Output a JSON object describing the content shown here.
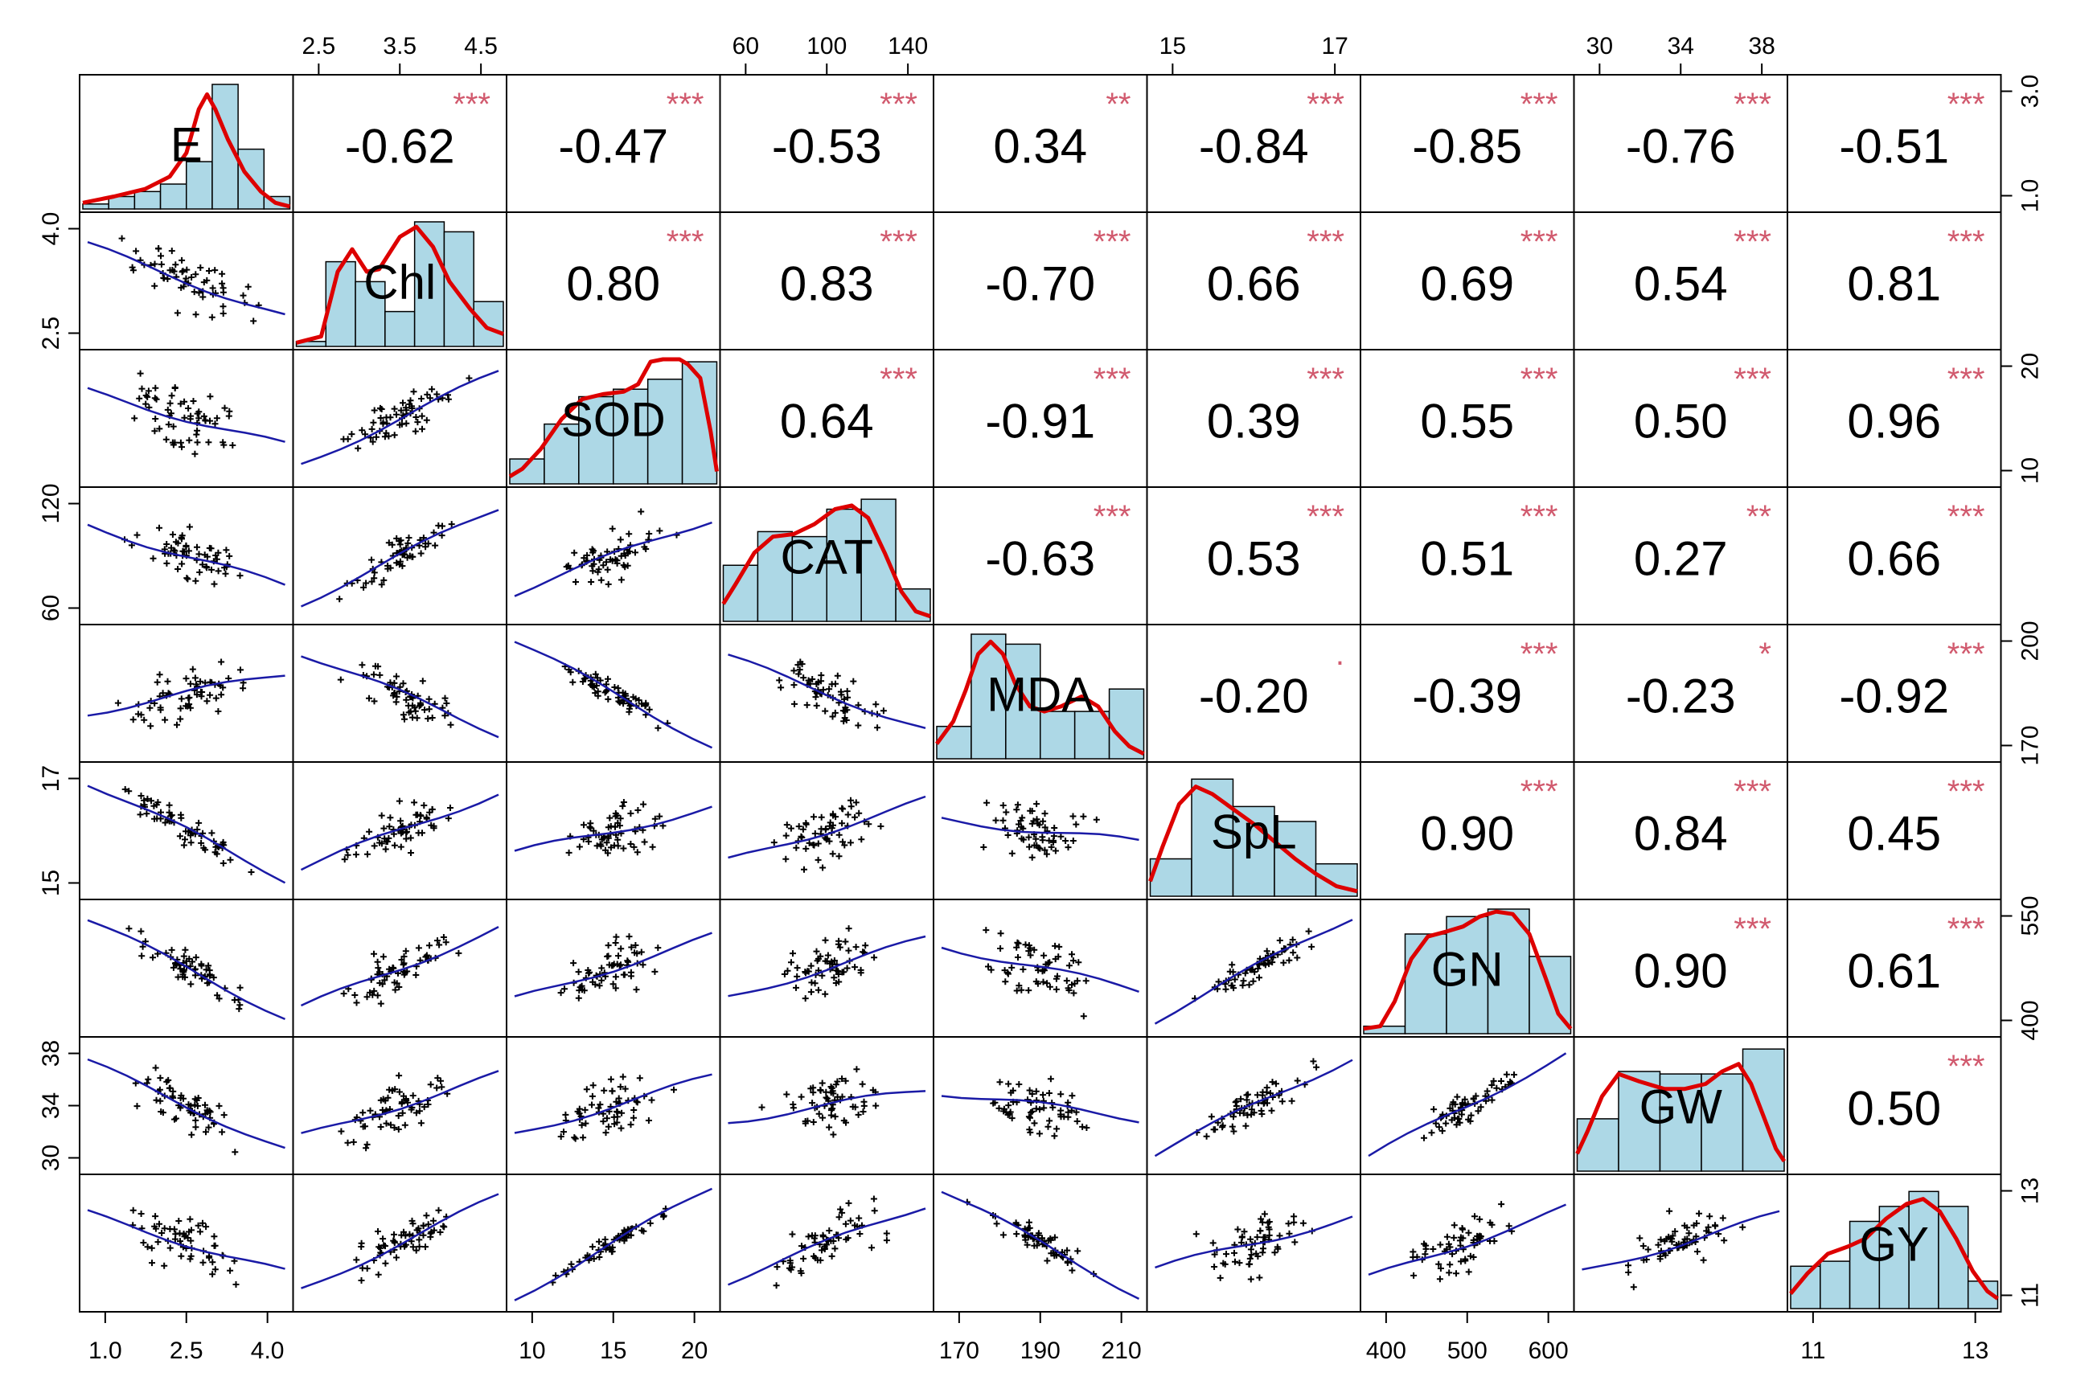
{
  "chart_data": {
    "type": "scatter-matrix",
    "variables": [
      "E",
      "Chl",
      "SOD",
      "CAT",
      "MDA",
      "SpL",
      "GN",
      "GW",
      "GY"
    ],
    "correlations": [
      {
        "row": 0,
        "col": 1,
        "r": "-0.62",
        "stars": "***"
      },
      {
        "row": 0,
        "col": 2,
        "r": "-0.47",
        "stars": "***"
      },
      {
        "row": 0,
        "col": 3,
        "r": "-0.53",
        "stars": "***"
      },
      {
        "row": 0,
        "col": 4,
        "r": "0.34",
        "stars": "**"
      },
      {
        "row": 0,
        "col": 5,
        "r": "-0.84",
        "stars": "***"
      },
      {
        "row": 0,
        "col": 6,
        "r": "-0.85",
        "stars": "***"
      },
      {
        "row": 0,
        "col": 7,
        "r": "-0.76",
        "stars": "***"
      },
      {
        "row": 0,
        "col": 8,
        "r": "-0.51",
        "stars": "***"
      },
      {
        "row": 1,
        "col": 2,
        "r": "0.80",
        "stars": "***"
      },
      {
        "row": 1,
        "col": 3,
        "r": "0.83",
        "stars": "***"
      },
      {
        "row": 1,
        "col": 4,
        "r": "-0.70",
        "stars": "***"
      },
      {
        "row": 1,
        "col": 5,
        "r": "0.66",
        "stars": "***"
      },
      {
        "row": 1,
        "col": 6,
        "r": "0.69",
        "stars": "***"
      },
      {
        "row": 1,
        "col": 7,
        "r": "0.54",
        "stars": "***"
      },
      {
        "row": 1,
        "col": 8,
        "r": "0.81",
        "stars": "***"
      },
      {
        "row": 2,
        "col": 3,
        "r": "0.64",
        "stars": "***"
      },
      {
        "row": 2,
        "col": 4,
        "r": "-0.91",
        "stars": "***"
      },
      {
        "row": 2,
        "col": 5,
        "r": "0.39",
        "stars": "***"
      },
      {
        "row": 2,
        "col": 6,
        "r": "0.55",
        "stars": "***"
      },
      {
        "row": 2,
        "col": 7,
        "r": "0.50",
        "stars": "***"
      },
      {
        "row": 2,
        "col": 8,
        "r": "0.96",
        "stars": "***"
      },
      {
        "row": 3,
        "col": 4,
        "r": "-0.63",
        "stars": "***"
      },
      {
        "row": 3,
        "col": 5,
        "r": "0.53",
        "stars": "***"
      },
      {
        "row": 3,
        "col": 6,
        "r": "0.51",
        "stars": "***"
      },
      {
        "row": 3,
        "col": 7,
        "r": "0.27",
        "stars": "**"
      },
      {
        "row": 3,
        "col": 8,
        "r": "0.66",
        "stars": "***"
      },
      {
        "row": 4,
        "col": 5,
        "r": "-0.20",
        "stars": "."
      },
      {
        "row": 4,
        "col": 6,
        "r": "-0.39",
        "stars": "***"
      },
      {
        "row": 4,
        "col": 7,
        "r": "-0.23",
        "stars": "*"
      },
      {
        "row": 4,
        "col": 8,
        "r": "-0.92",
        "stars": "***"
      },
      {
        "row": 5,
        "col": 6,
        "r": "0.90",
        "stars": "***"
      },
      {
        "row": 5,
        "col": 7,
        "r": "0.84",
        "stars": "***"
      },
      {
        "row": 5,
        "col": 8,
        "r": "0.45",
        "stars": "***"
      },
      {
        "row": 6,
        "col": 7,
        "r": "0.90",
        "stars": "***"
      },
      {
        "row": 6,
        "col": 8,
        "r": "0.61",
        "stars": "***"
      },
      {
        "row": 7,
        "col": 8,
        "r": "0.50",
        "stars": "***"
      }
    ],
    "histograms": [
      [
        0.04,
        0.1,
        0.14,
        0.2,
        0.38,
        1.0,
        0.48,
        0.1
      ],
      [
        0.04,
        0.68,
        0.52,
        0.28,
        1.0,
        0.92,
        0.36
      ],
      [
        0.2,
        0.48,
        0.7,
        0.76,
        0.84,
        0.98
      ],
      [
        0.45,
        0.72,
        0.68,
        0.9,
        0.98,
        0.26
      ],
      [
        0.26,
        1.0,
        0.92,
        0.38,
        0.38,
        0.56
      ],
      [
        0.3,
        0.94,
        0.72,
        0.6,
        0.26
      ],
      [
        0.06,
        0.8,
        0.94,
        1.0,
        0.62
      ],
      [
        0.42,
        0.8,
        0.78,
        0.78,
        0.98
      ],
      [
        0.34,
        0.38,
        0.7,
        0.82,
        0.94,
        0.82,
        0.22
      ]
    ],
    "density_curves": [
      [
        [
          0.0,
          0.05
        ],
        [
          0.15,
          0.1
        ],
        [
          0.3,
          0.16
        ],
        [
          0.42,
          0.26
        ],
        [
          0.5,
          0.45
        ],
        [
          0.56,
          0.8
        ],
        [
          0.6,
          0.92
        ],
        [
          0.64,
          0.8
        ],
        [
          0.7,
          0.56
        ],
        [
          0.78,
          0.3
        ],
        [
          0.86,
          0.14
        ],
        [
          0.93,
          0.05
        ],
        [
          1.0,
          0.02
        ]
      ],
      [
        [
          0.0,
          0.03
        ],
        [
          0.12,
          0.08
        ],
        [
          0.2,
          0.6
        ],
        [
          0.27,
          0.78
        ],
        [
          0.34,
          0.6
        ],
        [
          0.4,
          0.62
        ],
        [
          0.5,
          0.88
        ],
        [
          0.58,
          0.96
        ],
        [
          0.66,
          0.8
        ],
        [
          0.74,
          0.52
        ],
        [
          0.84,
          0.3
        ],
        [
          0.92,
          0.15
        ],
        [
          1.0,
          0.1
        ]
      ],
      [
        [
          0.0,
          0.06
        ],
        [
          0.06,
          0.12
        ],
        [
          0.15,
          0.28
        ],
        [
          0.25,
          0.52
        ],
        [
          0.35,
          0.68
        ],
        [
          0.45,
          0.72
        ],
        [
          0.55,
          0.74
        ],
        [
          0.62,
          0.8
        ],
        [
          0.68,
          0.98
        ],
        [
          0.74,
          1.0
        ],
        [
          0.82,
          1.0
        ],
        [
          0.86,
          0.96
        ],
        [
          0.92,
          0.85
        ],
        [
          0.97,
          0.42
        ],
        [
          1.0,
          0.1
        ]
      ],
      [
        [
          0.0,
          0.14
        ],
        [
          0.06,
          0.3
        ],
        [
          0.15,
          0.55
        ],
        [
          0.24,
          0.68
        ],
        [
          0.34,
          0.7
        ],
        [
          0.44,
          0.78
        ],
        [
          0.54,
          0.9
        ],
        [
          0.62,
          0.93
        ],
        [
          0.7,
          0.83
        ],
        [
          0.78,
          0.55
        ],
        [
          0.86,
          0.24
        ],
        [
          0.93,
          0.08
        ],
        [
          1.0,
          0.04
        ]
      ],
      [
        [
          0.0,
          0.12
        ],
        [
          0.08,
          0.3
        ],
        [
          0.14,
          0.55
        ],
        [
          0.2,
          0.84
        ],
        [
          0.26,
          0.94
        ],
        [
          0.32,
          0.84
        ],
        [
          0.38,
          0.6
        ],
        [
          0.45,
          0.42
        ],
        [
          0.52,
          0.38
        ],
        [
          0.6,
          0.42
        ],
        [
          0.7,
          0.5
        ],
        [
          0.78,
          0.42
        ],
        [
          0.86,
          0.22
        ],
        [
          0.93,
          0.1
        ],
        [
          1.0,
          0.04
        ]
      ],
      [
        [
          0.0,
          0.12
        ],
        [
          0.06,
          0.4
        ],
        [
          0.14,
          0.74
        ],
        [
          0.22,
          0.88
        ],
        [
          0.3,
          0.82
        ],
        [
          0.4,
          0.7
        ],
        [
          0.5,
          0.58
        ],
        [
          0.6,
          0.44
        ],
        [
          0.7,
          0.3
        ],
        [
          0.8,
          0.18
        ],
        [
          0.9,
          0.08
        ],
        [
          1.0,
          0.04
        ]
      ],
      [
        [
          0.0,
          0.04
        ],
        [
          0.08,
          0.06
        ],
        [
          0.15,
          0.26
        ],
        [
          0.23,
          0.6
        ],
        [
          0.31,
          0.78
        ],
        [
          0.4,
          0.82
        ],
        [
          0.48,
          0.86
        ],
        [
          0.56,
          0.94
        ],
        [
          0.64,
          0.98
        ],
        [
          0.72,
          0.96
        ],
        [
          0.8,
          0.8
        ],
        [
          0.88,
          0.44
        ],
        [
          0.94,
          0.16
        ],
        [
          1.0,
          0.04
        ]
      ],
      [
        [
          0.0,
          0.14
        ],
        [
          0.05,
          0.32
        ],
        [
          0.12,
          0.6
        ],
        [
          0.2,
          0.78
        ],
        [
          0.3,
          0.72
        ],
        [
          0.42,
          0.66
        ],
        [
          0.52,
          0.66
        ],
        [
          0.62,
          0.7
        ],
        [
          0.7,
          0.8
        ],
        [
          0.78,
          0.86
        ],
        [
          0.84,
          0.7
        ],
        [
          0.9,
          0.44
        ],
        [
          0.96,
          0.18
        ],
        [
          1.0,
          0.08
        ]
      ],
      [
        [
          0.0,
          0.12
        ],
        [
          0.08,
          0.28
        ],
        [
          0.18,
          0.44
        ],
        [
          0.28,
          0.5
        ],
        [
          0.36,
          0.56
        ],
        [
          0.46,
          0.72
        ],
        [
          0.56,
          0.84
        ],
        [
          0.64,
          0.88
        ],
        [
          0.72,
          0.78
        ],
        [
          0.8,
          0.56
        ],
        [
          0.88,
          0.3
        ],
        [
          0.95,
          0.14
        ],
        [
          1.0,
          0.08
        ]
      ]
    ],
    "top_ticks": [
      {
        "col": 1,
        "labels": [
          "2.5",
          "3.5",
          "4.5"
        ]
      },
      {
        "col": 3,
        "labels": [
          "60",
          "100",
          "140"
        ]
      },
      {
        "col": 5,
        "labels": [
          "15",
          "17"
        ]
      },
      {
        "col": 7,
        "labels": [
          "30",
          "34",
          "38"
        ]
      }
    ],
    "bottom_ticks": [
      {
        "col": 0,
        "labels": [
          "1.0",
          "2.5",
          "4.0"
        ]
      },
      {
        "col": 2,
        "labels": [
          "10",
          "15",
          "20"
        ]
      },
      {
        "col": 4,
        "labels": [
          "170",
          "190",
          "210"
        ]
      },
      {
        "col": 6,
        "labels": [
          "400",
          "500",
          "600"
        ]
      },
      {
        "col": 8,
        "labels": [
          "11",
          "13"
        ]
      }
    ],
    "left_ticks": [
      {
        "row": 1,
        "labels": [
          "2.5",
          "4.0"
        ]
      },
      {
        "row": 3,
        "labels": [
          "60",
          "120"
        ]
      },
      {
        "row": 5,
        "labels": [
          "15",
          "17"
        ]
      },
      {
        "row": 7,
        "labels": [
          "30",
          "34",
          "38"
        ]
      }
    ],
    "right_ticks": [
      {
        "row": 0,
        "labels": [
          "1.0",
          "3.0"
        ]
      },
      {
        "row": 2,
        "labels": [
          "10",
          "20"
        ]
      },
      {
        "row": 4,
        "labels": [
          "170",
          "200"
        ]
      },
      {
        "row": 6,
        "labels": [
          "400",
          "550"
        ]
      },
      {
        "row": 8,
        "labels": [
          "11",
          "13"
        ]
      }
    ],
    "colors": {
      "histogram_fill": "#add8e6",
      "density_line": "#dd0000",
      "significance_stars": "#d15a6e",
      "smooth_line": "#1a1aa6",
      "points": "#000000"
    }
  }
}
